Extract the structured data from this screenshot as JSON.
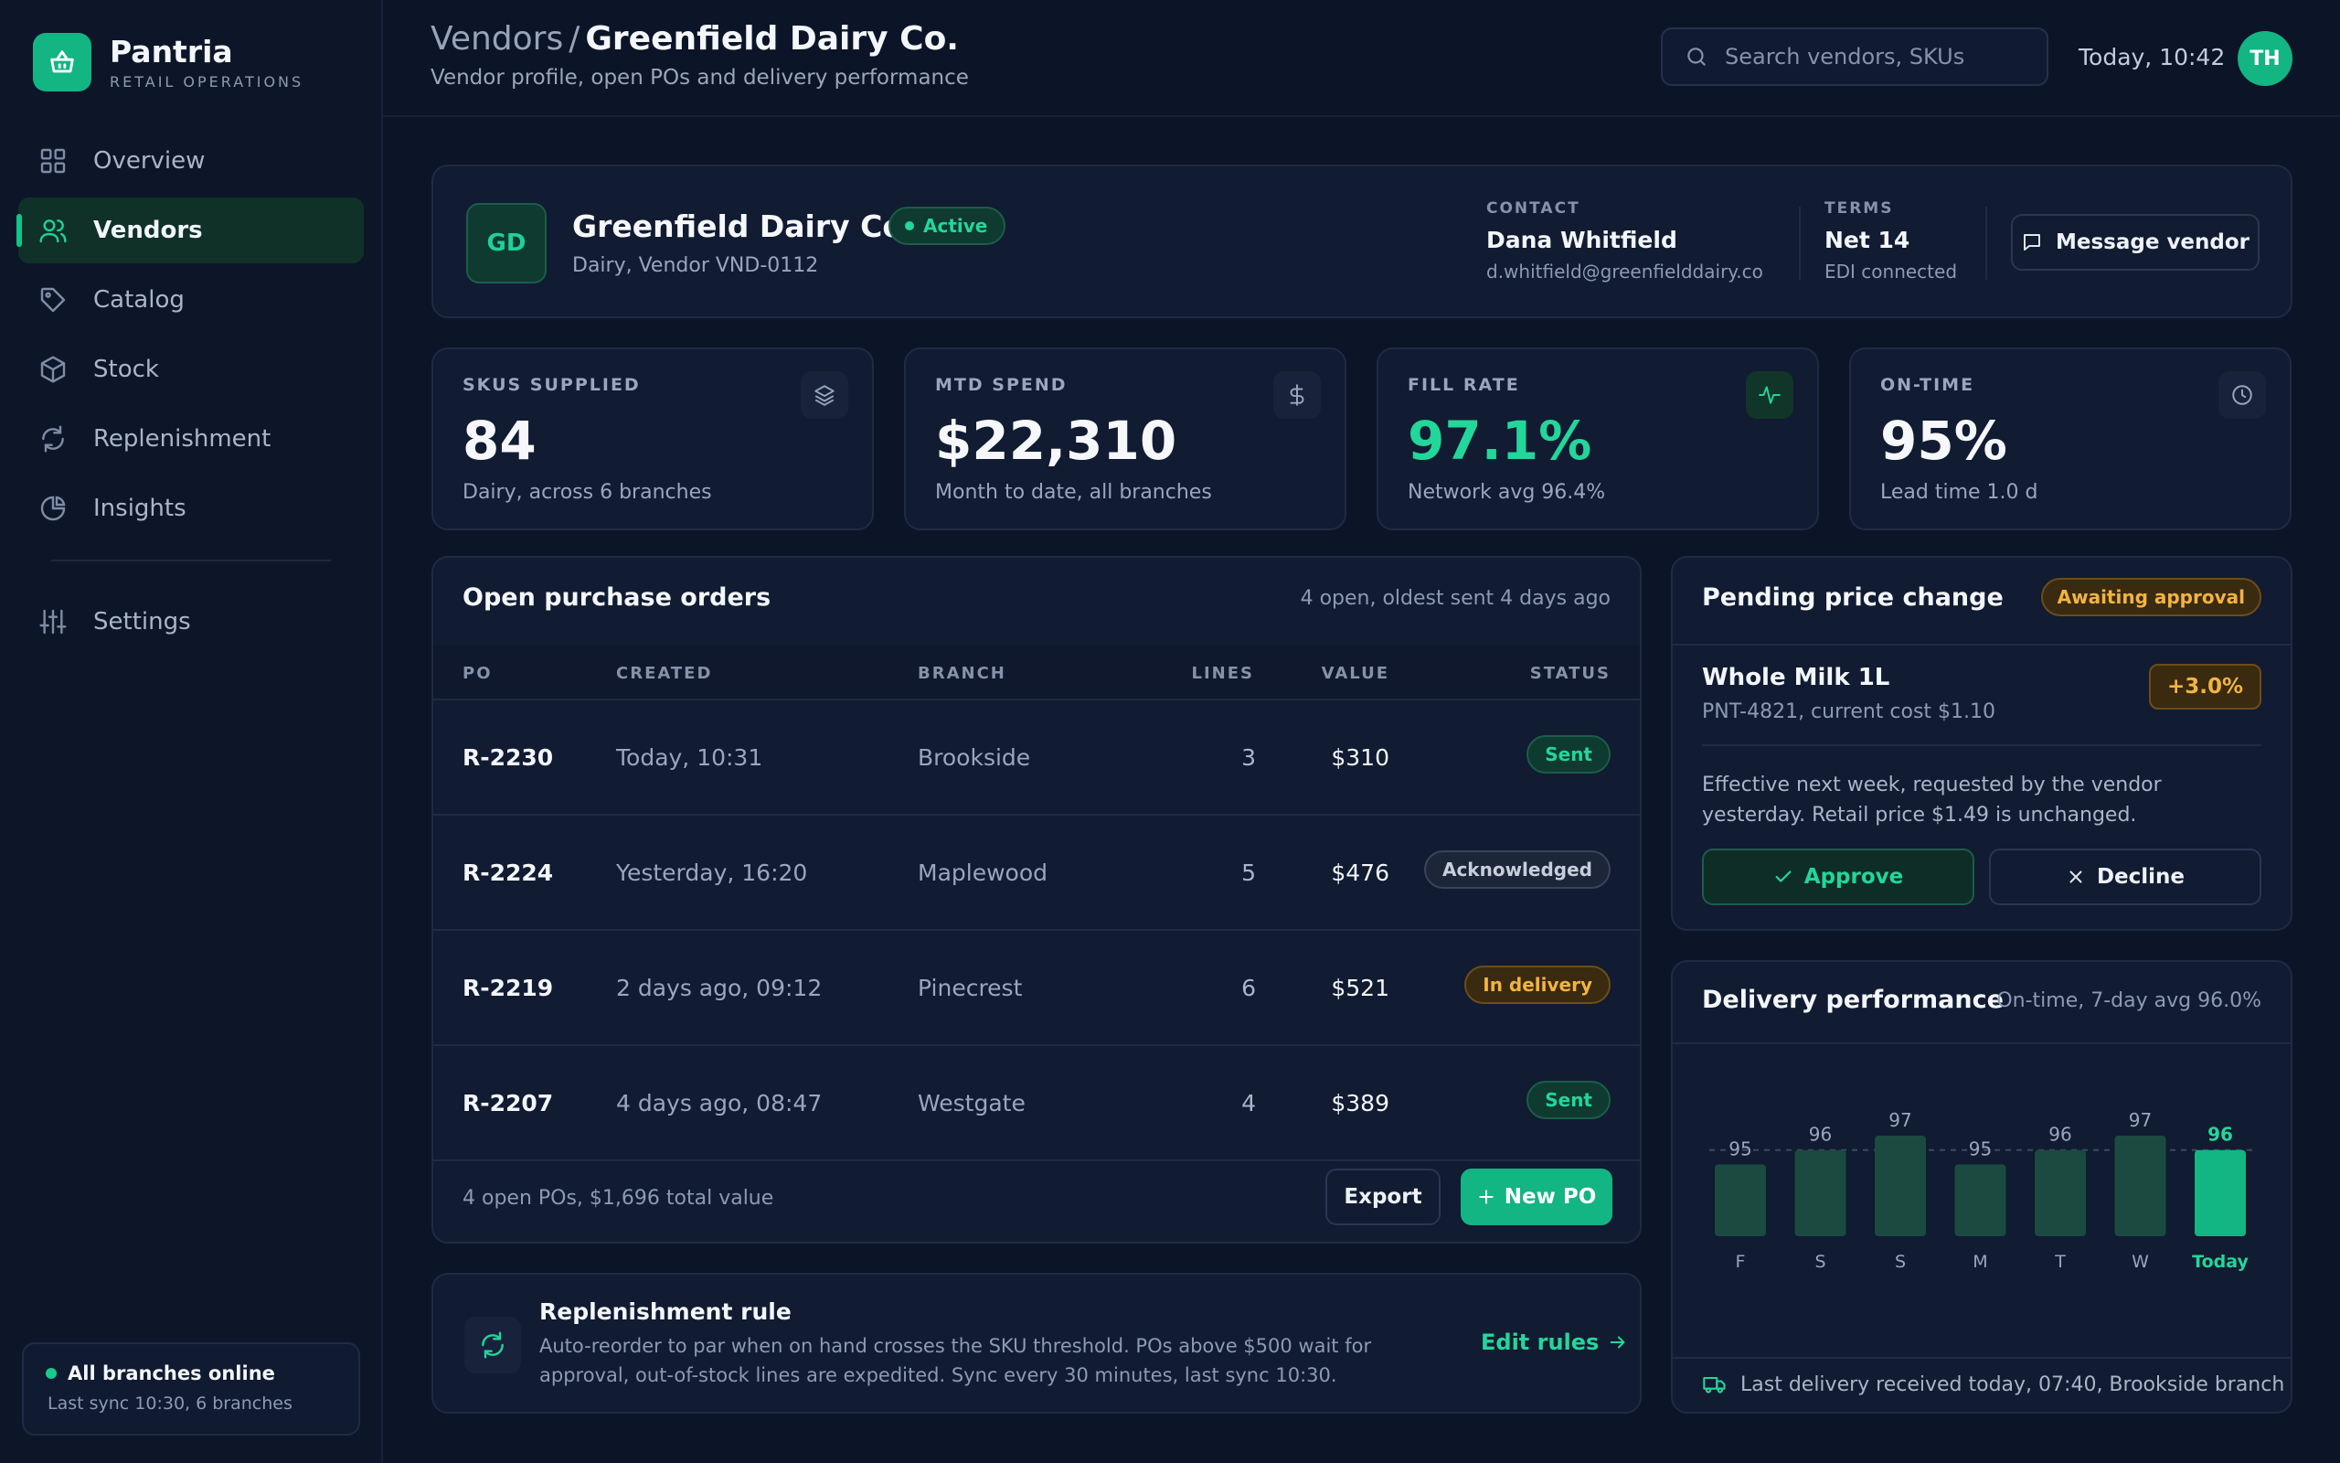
{
  "brand": {
    "name": "Pantria",
    "subtitle": "RETAIL OPERATIONS",
    "accent": "#13b582"
  },
  "nav": {
    "items": [
      {
        "label": "Overview",
        "icon": "grid-icon"
      },
      {
        "label": "Vendors",
        "icon": "users-icon",
        "active": true
      },
      {
        "label": "Catalog",
        "icon": "tag-icon"
      },
      {
        "label": "Stock",
        "icon": "box-icon"
      },
      {
        "label": "Replenishment",
        "icon": "refresh-icon"
      },
      {
        "label": "Insights",
        "icon": "pie-icon"
      }
    ],
    "settings": "Settings"
  },
  "status": {
    "title": "All branches online",
    "sub": "Last sync 10:30, 6 branches"
  },
  "header": {
    "crumb_parent": "Vendors",
    "crumb_sep": "/",
    "crumb_current": "Greenfield Dairy Co.",
    "subtitle": "Vendor profile, open POs and delivery performance",
    "search_placeholder": "Search vendors, SKUs",
    "time": "Today, 10:42",
    "avatar": "TH"
  },
  "vendor": {
    "initials": "GD",
    "name": "Greenfield Dairy Co.",
    "status": "Active",
    "sub": "Dairy, Vendor VND-0112",
    "contact_label": "CONTACT",
    "contact_name": "Dana Whitfield",
    "contact_email": "d.whitfield@greenfielddairy.co",
    "terms_label": "TERMS",
    "terms_value": "Net 14",
    "terms_sub": "EDI connected",
    "message_button": "Message vendor"
  },
  "stats": [
    {
      "label": "SKUS SUPPLIED",
      "value": "84",
      "sub": "Dairy, across 6 branches",
      "icon": "layers-icon"
    },
    {
      "label": "MTD SPEND",
      "value": "$22,310",
      "sub": "Month to date, all branches",
      "icon": "dollar-icon"
    },
    {
      "label": "FILL RATE",
      "value": "97.1%",
      "sub": "Network avg 96.4%",
      "icon": "activity-icon"
    },
    {
      "label": "ON-TIME",
      "value": "95%",
      "sub": "Lead time 1.0 d",
      "icon": "clock-icon"
    }
  ],
  "orders": {
    "title": "Open purchase orders",
    "meta": "4 open, oldest sent 4 days ago",
    "columns": [
      "PO",
      "CREATED",
      "BRANCH",
      "LINES",
      "VALUE",
      "STATUS"
    ],
    "rows": [
      {
        "po": "R-2230",
        "created": "Today, 10:31",
        "branch": "Brookside",
        "lines": "3",
        "value": "$310",
        "status": "Sent"
      },
      {
        "po": "R-2224",
        "created": "Yesterday, 16:20",
        "branch": "Maplewood",
        "lines": "5",
        "value": "$476",
        "status": "Acknowledged"
      },
      {
        "po": "R-2219",
        "created": "2 days ago, 09:12",
        "branch": "Pinecrest",
        "lines": "6",
        "value": "$521",
        "status": "In delivery"
      },
      {
        "po": "R-2207",
        "created": "4 days ago, 08:47",
        "branch": "Westgate",
        "lines": "4",
        "value": "$389",
        "status": "Sent"
      }
    ],
    "footer": "4 open POs, $1,696 total value",
    "export_button": "Export",
    "new_button": "New PO"
  },
  "rule": {
    "title": "Replenishment rule",
    "text": "Auto-reorder to par when on hand crosses the SKU threshold. POs above $500 wait for approval, out-of-stock lines are expedited. Sync every 30 minutes, last sync 10:30.",
    "link": "Edit rules"
  },
  "price": {
    "title": "Pending price change",
    "badge": "Awaiting approval",
    "item": "Whole Milk 1L",
    "sku": "PNT-4821, current cost $1.10",
    "delta": "+3.0%",
    "note": "Effective next week, requested by the vendor yesterday. Retail price $1.49 is unchanged.",
    "approve": "Approve",
    "decline": "Decline"
  },
  "delivery": {
    "title": "Delivery performance",
    "meta": "On-time, 7-day avg 96.0%",
    "footer": "Last delivery received today, 07:40, Brookside branch"
  },
  "chart_data": {
    "type": "bar",
    "categories": [
      "F",
      "S",
      "S",
      "M",
      "T",
      "W",
      "Today"
    ],
    "values": [
      95,
      96,
      97,
      95,
      96,
      97,
      96
    ],
    "average": 96.0,
    "highlight_index": 6,
    "colors": {
      "bar": "#1a4a40",
      "highlight": "#13b582",
      "avg_line": "#3e4a62"
    }
  }
}
